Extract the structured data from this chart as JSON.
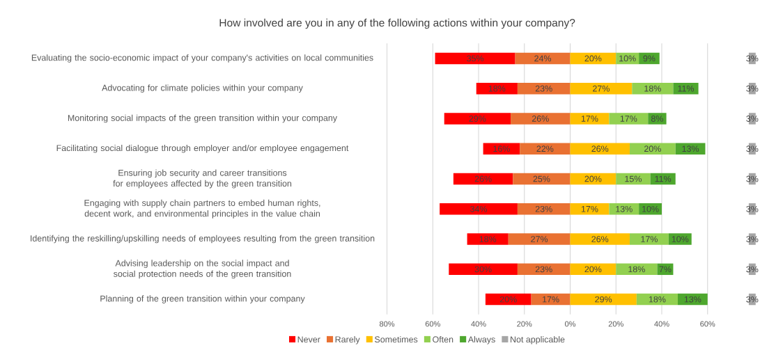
{
  "chart_data": {
    "type": "bar",
    "orientation": "horizontal",
    "title": "How involved are you in any of the following actions within your company?",
    "categories": [
      "Evaluating the socio-economic impact of your company's activities on local communities",
      "Advocating for climate policies within your company",
      "Monitoring social impacts of the green transition within your company",
      "Facilitating social dialogue through employer and/or employee engagement",
      "Ensuring job security and career transitions for employees affected by the green transition",
      "Engaging with supply chain partners to embed human rights, decent work, and environmental principles in the value chain",
      "Identifying the reskilling/upskilling needs of employees resulting from the green transition",
      "Advising leadership on the social impact and social protection needs of the green transition",
      "Planning of the green transition within your company"
    ],
    "series": [
      {
        "name": "Never",
        "color": "#ff0000",
        "values": [
          35,
          18,
          29,
          16,
          26,
          34,
          18,
          30,
          20
        ],
        "base": [
          -59,
          -41,
          -55,
          -38,
          -51,
          -57,
          -45,
          -53,
          -37
        ],
        "value_labels": [
          "35%",
          "18%",
          "29%",
          "16%",
          "26%",
          "34%",
          "18%",
          "30%",
          "20%"
        ]
      },
      {
        "name": "Rarely",
        "color": "#e97132",
        "values": [
          24,
          23,
          26,
          22,
          25,
          23,
          27,
          23,
          17
        ],
        "base": [
          -24,
          -23,
          -26,
          -22,
          -25,
          -23,
          -27,
          -23,
          -17
        ],
        "value_labels": [
          "24%",
          "23%",
          "26%",
          "22%",
          "25%",
          "23%",
          "27%",
          "23%",
          "17%"
        ]
      },
      {
        "name": "Sometimes",
        "color": "#ffc000",
        "values": [
          20,
          27,
          17,
          26,
          20,
          17,
          26,
          20,
          29
        ],
        "base": [
          0,
          0,
          0,
          0,
          0,
          0,
          0,
          0,
          0
        ],
        "value_labels": [
          "20%",
          "27%",
          "17%",
          "26%",
          "20%",
          "17%",
          "26%",
          "20%",
          "29%"
        ]
      },
      {
        "name": "Often",
        "color": "#92d050",
        "values": [
          10,
          18,
          17,
          20,
          15,
          13,
          17,
          18,
          18
        ],
        "base": [
          20,
          27,
          17,
          26,
          20,
          17,
          26,
          20,
          29
        ],
        "value_labels": [
          "10%",
          "18%",
          "17%",
          "20%",
          "15%",
          "13%",
          "17%",
          "18%",
          "18%"
        ]
      },
      {
        "name": "Always",
        "color": "#4ea72e",
        "values": [
          9,
          11,
          8,
          13,
          11,
          10,
          10,
          7,
          13
        ],
        "base": [
          30,
          45,
          34,
          46,
          35,
          30,
          43,
          38,
          47
        ],
        "value_labels": [
          "9%",
          "11%",
          "8%",
          "13%",
          "11%",
          "10%",
          "10%",
          "7%",
          "13%"
        ]
      },
      {
        "name": "Not applicable",
        "color": "#a6a6a6",
        "values": [
          3,
          3,
          3,
          3,
          3,
          3,
          3,
          3,
          3
        ],
        "base": [
          78,
          78,
          78,
          78,
          78,
          78,
          78,
          78,
          78
        ],
        "value_labels": [
          "3%",
          "3%",
          "3%",
          "3%",
          "3%",
          "3%",
          "3%",
          "3%",
          "3%"
        ]
      }
    ],
    "xlim": [
      -80,
      82
    ],
    "xticks": [
      {
        "value": -80,
        "label": "80%"
      },
      {
        "value": -60,
        "label": "60%"
      },
      {
        "value": -40,
        "label": "40%"
      },
      {
        "value": -20,
        "label": "20%"
      },
      {
        "value": 0,
        "label": "0%"
      },
      {
        "value": 20,
        "label": "20%"
      },
      {
        "value": 40,
        "label": "40%"
      },
      {
        "value": 60,
        "label": "60%"
      }
    ],
    "grid": "x",
    "legend": "bottom"
  }
}
